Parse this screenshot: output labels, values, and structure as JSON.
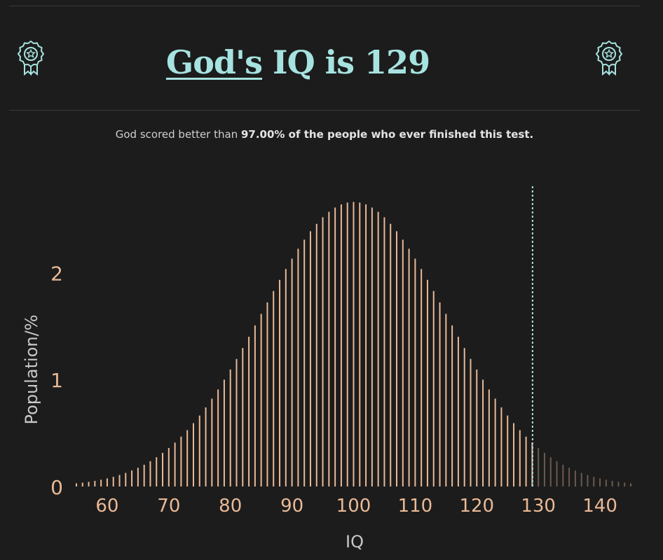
{
  "header": {
    "title_name": "God's",
    "title_rest": " IQ is 129",
    "badge_icon": "award-ribbon-icon"
  },
  "summary": {
    "prefix": "God scored better than ",
    "bold": "97.00% of the people who ever finished this test."
  },
  "colors": {
    "accent": "#a6e3e0",
    "bar": "#e9b996",
    "bar_above": "#6b5a4e",
    "background": "#1c1c1c",
    "axis_text": "#e9b996",
    "label_text": "#c8c8c8"
  },
  "chart_data": {
    "type": "bar",
    "title": "",
    "xlabel": "IQ",
    "ylabel": "Population/%",
    "x_range": [
      55,
      145
    ],
    "xlim": [
      55,
      145
    ],
    "ylim": [
      0,
      2.8
    ],
    "x_ticks": [
      60,
      70,
      80,
      90,
      100,
      110,
      120,
      130,
      140
    ],
    "y_ticks": [
      0,
      1,
      2
    ],
    "distribution": "normal",
    "mean": 100,
    "sd": 15,
    "marker": {
      "value": 129,
      "style": "dashed",
      "color": "#a6e3e0"
    },
    "grid": false,
    "legend": "none"
  }
}
